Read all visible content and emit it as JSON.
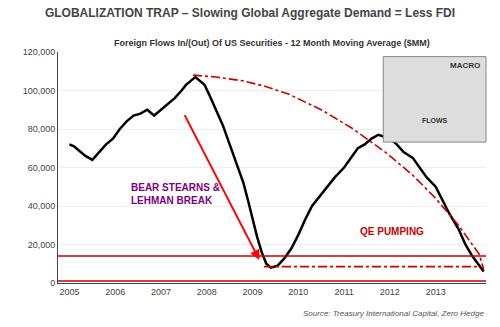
{
  "chart_data": {
    "type": "line",
    "title": "GLOBALIZATION TRAP – Slowing Global Aggregate Demand = Less FDI",
    "subtitle": "Foreign Flows In/(Out) Of US Securities - 12 Month Moving Average ($MM)",
    "source": "Source: Treasury International Capital, Zero Hedge",
    "xlim": [
      2004.75,
      2014.1
    ],
    "xticks": [
      2005,
      2006,
      2007,
      2008,
      2009,
      2010,
      2011,
      2012,
      2013
    ],
    "ylim": [
      0,
      120000
    ],
    "yticks": [
      0,
      {
        "value": 20000,
        "label": "20,000"
      },
      {
        "value": 40000,
        "label": "40,000"
      },
      {
        "value": 60000,
        "label": "60,000"
      },
      {
        "value": 80000,
        "label": "80,000"
      },
      {
        "value": 100000,
        "label": "100,000"
      },
      {
        "value": 120000,
        "label": "120,000"
      }
    ],
    "grid": true,
    "series": [
      {
        "color": "#000000",
        "line_style": "solid",
        "x": [
          2005.0,
          2005.1,
          2005.2,
          2005.35,
          2005.5,
          2005.65,
          2005.8,
          2005.95,
          2006.1,
          2006.25,
          2006.4,
          2006.55,
          2006.7,
          2006.85,
          2007.0,
          2007.15,
          2007.3,
          2007.45,
          2007.55,
          2007.65,
          2007.75,
          2007.85,
          2007.95,
          2008.05,
          2008.2,
          2008.35,
          2008.5,
          2008.65,
          2008.8,
          2008.9,
          2009.0,
          2009.1,
          2009.2,
          2009.3,
          2009.4,
          2009.55,
          2009.7,
          2009.85,
          2010.0,
          2010.15,
          2010.3,
          2010.5,
          2010.65,
          2010.8,
          2011.0,
          2011.15,
          2011.3,
          2011.45,
          2011.6,
          2011.75,
          2012.0,
          2012.15,
          2012.3,
          2012.5,
          2012.65,
          2012.8,
          2013.0,
          2013.15,
          2013.3,
          2013.5,
          2013.65,
          2013.8,
          2013.95,
          2014.05
        ],
        "values": [
          72000,
          71000,
          69000,
          66000,
          64000,
          68000,
          72000,
          75000,
          80000,
          84000,
          87000,
          88000,
          90000,
          87000,
          90000,
          93000,
          96000,
          100000,
          103000,
          105000,
          107000,
          105000,
          103000,
          98000,
          90000,
          82000,
          72000,
          62000,
          52000,
          43000,
          33000,
          24000,
          16000,
          10000,
          8000,
          9000,
          13000,
          18000,
          25000,
          33000,
          40000,
          46000,
          50000,
          55000,
          60000,
          65000,
          70000,
          72000,
          75000,
          77000,
          75000,
          72000,
          68000,
          65000,
          60000,
          55000,
          50000,
          43000,
          36000,
          28000,
          20000,
          14000,
          9000,
          6000
        ]
      },
      {
        "color": "#cc0000",
        "line_style": "dashdot",
        "x": [
          2007.7,
          2008.2,
          2008.8,
          2009.3,
          2009.8,
          2010.5,
          2011.2,
          2011.9,
          2012.5,
          2013.0,
          2013.5,
          2013.95,
          2014.05
        ],
        "values": [
          108000,
          107000,
          105000,
          102000,
          98000,
          90000,
          80000,
          68000,
          56000,
          44000,
          30000,
          15000,
          7000
        ]
      },
      {
        "color": "#cc0000",
        "line_style": "dashdot",
        "x": [
          2009.25,
          2013.98
        ],
        "values": [
          8500,
          8500
        ]
      }
    ],
    "annotations": [
      {
        "text": "BEAR STEARNS &\nLEHMAN BREAK",
        "x": 2006.3,
        "y": 46000,
        "color": "#800080"
      },
      {
        "text": "QE PUMPING",
        "x": 2011.3,
        "y": 27000,
        "color": "#cc0000"
      }
    ],
    "arrow": {
      "from": [
        2007.5,
        88000
      ],
      "to": [
        2009.15,
        12000
      ],
      "color": "red"
    },
    "circle": {
      "x": 2013.95,
      "y": 7500,
      "radius": 6500,
      "color": "#cc0000"
    },
    "inset": {
      "label": "MACRO",
      "text": "FLOWS"
    }
  }
}
